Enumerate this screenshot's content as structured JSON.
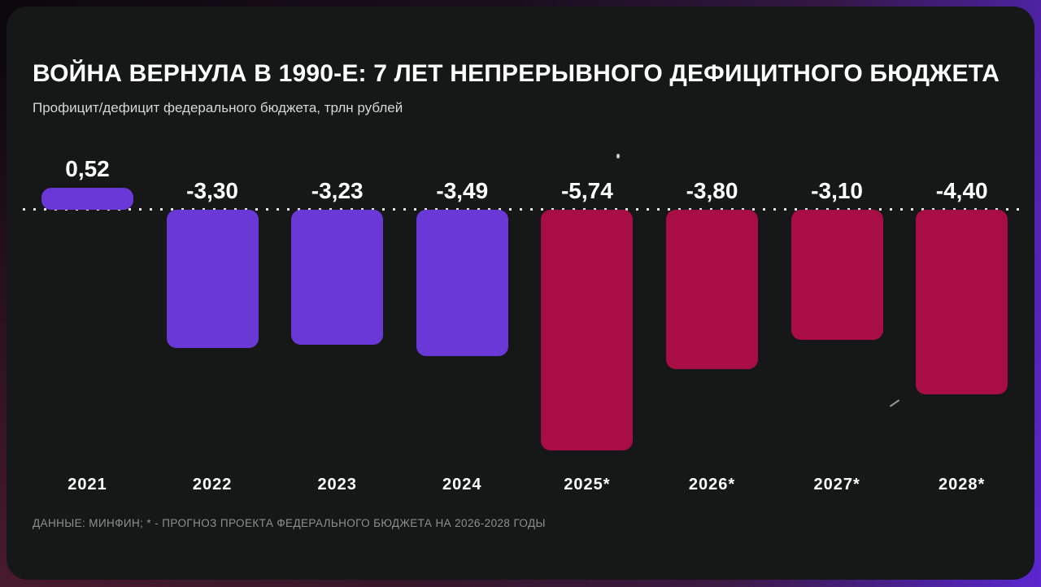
{
  "header": {
    "title": "ВОЙНА ВЕРНУЛА В 1990-Е: 7 ЛЕТ НЕПРЕРЫВНОГО ДЕФИЦИТНОГО БЮДЖЕТА",
    "subtitle": "Профицит/дефицит федерального бюджета, трлн рублей"
  },
  "footer": {
    "source_note": "ДАННЫЕ: МИНФИН; * - ПРОГНОЗ ПРОЕКТА ФЕДЕРАЛЬНОГО БЮДЖЕТА НА 2026-2028 ГОДЫ"
  },
  "chart_data": {
    "type": "bar",
    "title": "ВОЙНА ВЕРНУЛА В 1990-Е: 7 ЛЕТ НЕПРЕРЫВНОГО ДЕФИЦИТНОГО БЮДЖЕТА",
    "subtitle": "Профицит/дефицит федерального бюджета, трлн рублей",
    "xlabel": "",
    "ylabel": "трлн рублей",
    "categories": [
      "2021",
      "2022",
      "2023",
      "2024",
      "2025*",
      "2026*",
      "2027*",
      "2028*"
    ],
    "values": [
      0.52,
      -3.3,
      -3.23,
      -3.49,
      -5.74,
      -3.8,
      -3.1,
      -4.4
    ],
    "value_labels": [
      "0,52",
      "-3,30",
      "-3,23",
      "-3,49",
      "-5,74",
      "-3,80",
      "-3,10",
      "-4,40"
    ],
    "bar_colors": [
      "#6B38D8",
      "#6B38D8",
      "#6B38D8",
      "#6B38D8",
      "#A80D46",
      "#A80D46",
      "#A80D46",
      "#A80D46"
    ],
    "series_colors": {
      "actual": "#6B38D8",
      "forecast": "#A80D46"
    },
    "baseline": 0,
    "ylim": [
      -5.74,
      0.52
    ],
    "grid": "dotted zero line only",
    "legend_position": "none",
    "annotation": "* - прогноз"
  }
}
